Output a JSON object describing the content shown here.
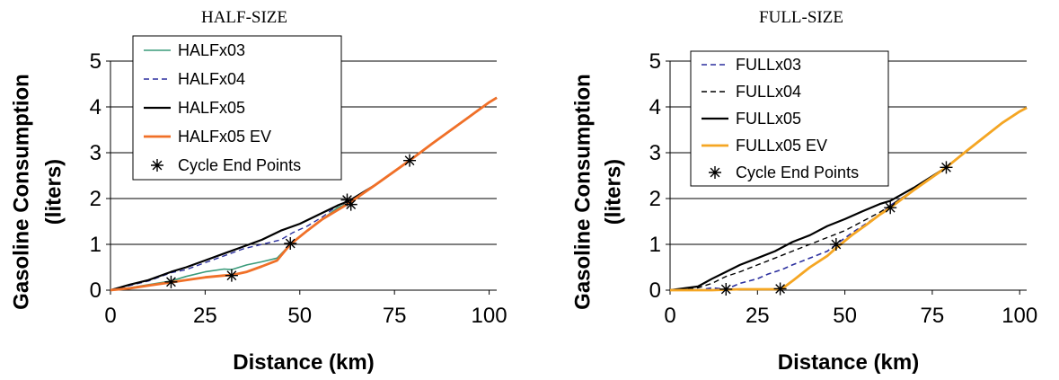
{
  "chart_data": [
    {
      "type": "line",
      "title": "HALF-SIZE",
      "xlabel": "Distance (km)",
      "ylabel": "Gasoline Consumption (liters)",
      "ylabel_lines": [
        "Gasoline Consumption",
        "(liters)"
      ],
      "xlim": [
        0,
        102
      ],
      "ylim": [
        0,
        5
      ],
      "xticks": [
        0,
        25,
        50,
        75,
        100
      ],
      "yticks": [
        0,
        1,
        2,
        3,
        4,
        5
      ],
      "grid": "horizontal",
      "legend_position": "top-left",
      "series": [
        {
          "name": "HALFx03",
          "color": "#3a9b7a",
          "style": "solid",
          "x": [
            0,
            5,
            10,
            16,
            20,
            25,
            30,
            32,
            36,
            40,
            44,
            47.5,
            52,
            56,
            60,
            63,
            70,
            79,
            85,
            90,
            95,
            100,
            102
          ],
          "y": [
            0,
            0.05,
            0.12,
            0.2,
            0.3,
            0.4,
            0.46,
            0.45,
            0.55,
            0.62,
            0.7,
            1.0,
            1.3,
            1.55,
            1.8,
            1.9,
            2.3,
            2.83,
            3.2,
            3.5,
            3.8,
            4.1,
            4.2
          ]
        },
        {
          "name": "HALFx04",
          "color": "#2b2f9e",
          "style": "dashed",
          "x": [
            0,
            5,
            10,
            16,
            20,
            25,
            30,
            35,
            40,
            45,
            48,
            52,
            56,
            60,
            63,
            70,
            79,
            85,
            90,
            95,
            100,
            102
          ],
          "y": [
            0,
            0.1,
            0.2,
            0.38,
            0.45,
            0.6,
            0.75,
            0.9,
            1.0,
            1.1,
            1.25,
            1.4,
            1.6,
            1.85,
            1.95,
            2.3,
            2.83,
            3.2,
            3.5,
            3.8,
            4.1,
            4.2
          ]
        },
        {
          "name": "HALFx05",
          "color": "#000000",
          "style": "solid",
          "x": [
            0,
            5,
            10,
            16,
            20,
            25,
            30,
            35,
            40,
            45,
            50,
            55,
            60,
            63,
            70,
            79,
            85,
            90,
            95,
            100,
            102
          ],
          "y": [
            0,
            0.12,
            0.22,
            0.4,
            0.5,
            0.65,
            0.8,
            0.95,
            1.1,
            1.3,
            1.45,
            1.65,
            1.85,
            1.95,
            2.3,
            2.83,
            3.2,
            3.5,
            3.8,
            4.1,
            4.2
          ]
        },
        {
          "name": "HALFx05 EV",
          "color": "#f07028",
          "style": "solid",
          "x": [
            0,
            5,
            10,
            16,
            20,
            25,
            30,
            32,
            36,
            40,
            44,
            47.5,
            52,
            56,
            60,
            63,
            70,
            79,
            85,
            90,
            95,
            100,
            102
          ],
          "y": [
            0,
            0.04,
            0.1,
            0.17,
            0.22,
            0.28,
            0.32,
            0.33,
            0.4,
            0.52,
            0.65,
            1.0,
            1.3,
            1.55,
            1.75,
            1.9,
            2.3,
            2.83,
            3.2,
            3.5,
            3.8,
            4.1,
            4.2
          ]
        },
        {
          "name": "Cycle End Points",
          "color": "#000000",
          "style": "marker",
          "x": [
            16,
            32,
            47.5,
            62.5,
            63.5,
            79
          ],
          "y": [
            0.18,
            0.32,
            1.02,
            1.97,
            1.87,
            2.83
          ]
        }
      ]
    },
    {
      "type": "line",
      "title": "FULL-SIZE",
      "xlabel": "Distance (km)",
      "ylabel": "Gasoline Consumption (liters)",
      "ylabel_lines": [
        "Gasoline Consumption",
        "(liters)"
      ],
      "xlim": [
        0,
        102
      ],
      "ylim": [
        0,
        5
      ],
      "xticks": [
        0,
        25,
        50,
        75,
        100
      ],
      "yticks": [
        0,
        1,
        2,
        3,
        4,
        5
      ],
      "grid": "horizontal",
      "legend_position": "top-left",
      "series": [
        {
          "name": "FULLx03",
          "color": "#2b2f9e",
          "style": "dashed",
          "x": [
            0,
            8,
            12,
            16,
            20,
            25,
            28,
            32,
            35,
            40,
            45,
            47.5,
            52,
            56,
            60,
            63,
            70,
            79,
            85,
            90,
            95,
            100,
            102
          ],
          "y": [
            0,
            0,
            0.05,
            0.02,
            0.15,
            0.25,
            0.35,
            0.45,
            0.55,
            0.7,
            0.85,
            1.0,
            1.25,
            1.45,
            1.65,
            1.85,
            2.2,
            2.68,
            3.05,
            3.35,
            3.65,
            3.9,
            3.98
          ]
        },
        {
          "name": "FULLx04",
          "color": "#000000",
          "style": "dashed",
          "x": [
            0,
            8,
            12,
            16,
            20,
            25,
            30,
            35,
            40,
            45,
            50,
            55,
            60,
            63,
            70,
            79,
            85,
            90,
            95,
            100,
            102
          ],
          "y": [
            0,
            0.05,
            0.15,
            0.3,
            0.4,
            0.55,
            0.7,
            0.85,
            1.0,
            1.15,
            1.3,
            1.5,
            1.7,
            1.85,
            2.2,
            2.68,
            3.05,
            3.35,
            3.65,
            3.9,
            3.98
          ]
        },
        {
          "name": "FULLx05",
          "color": "#000000",
          "style": "solid",
          "x": [
            0,
            8,
            12,
            16,
            20,
            25,
            30,
            35,
            40,
            45,
            50,
            55,
            60,
            63,
            70,
            79,
            85,
            90,
            95,
            100,
            102
          ],
          "y": [
            0,
            0.08,
            0.25,
            0.4,
            0.55,
            0.7,
            0.85,
            1.05,
            1.2,
            1.4,
            1.55,
            1.72,
            1.88,
            1.95,
            2.25,
            2.68,
            3.05,
            3.35,
            3.65,
            3.9,
            3.98
          ]
        },
        {
          "name": "FULLx05 EV",
          "color": "#f5a623",
          "style": "solid",
          "x": [
            0,
            8,
            12,
            16,
            20,
            25,
            28,
            30,
            32,
            35,
            40,
            45,
            47.5,
            52,
            56,
            60,
            63,
            70,
            79,
            85,
            90,
            95,
            100,
            102
          ],
          "y": [
            0,
            0,
            0,
            0.01,
            0.02,
            0.02,
            0.02,
            0.02,
            0.03,
            0.2,
            0.5,
            0.75,
            0.92,
            1.2,
            1.42,
            1.65,
            1.8,
            2.2,
            2.68,
            3.05,
            3.35,
            3.65,
            3.9,
            3.98
          ]
        },
        {
          "name": "Cycle End Points",
          "color": "#000000",
          "style": "marker",
          "x": [
            16,
            31.5,
            47.5,
            63,
            79
          ],
          "y": [
            0.02,
            0.03,
            1.0,
            1.8,
            2.68
          ]
        }
      ]
    }
  ]
}
